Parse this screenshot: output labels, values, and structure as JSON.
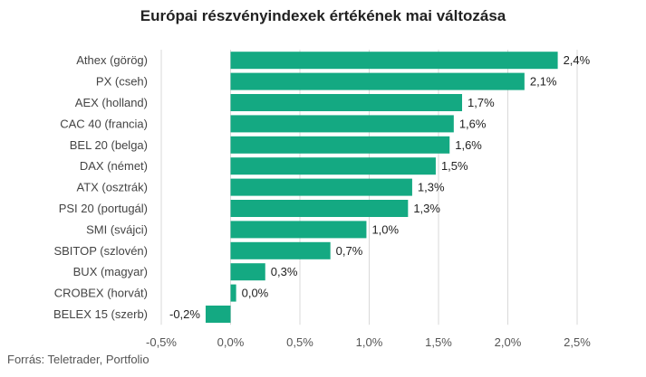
{
  "chart_data": {
    "type": "bar",
    "orientation": "horizontal",
    "title": "Európai részvényindexek értékének mai változása",
    "source": "Forrás: Teletrader, Portfolio",
    "bar_color": "#14a982",
    "categories": [
      "Athex (görög)",
      "PX (cseh)",
      "AEX (holland)",
      "CAC 40 (francia)",
      "BEL 20 (belga)",
      "DAX (német)",
      "ATX (osztrák)",
      "PSI 20 (portugál)",
      "SMI (svájci)",
      "SBITOP (szlovén)",
      "BUX (magyar)",
      "CROBEX (horvát)",
      "BELEX 15 (szerb)"
    ],
    "values": [
      2.36,
      2.12,
      1.67,
      1.61,
      1.58,
      1.48,
      1.31,
      1.28,
      0.98,
      0.72,
      0.25,
      0.04,
      -0.18
    ],
    "value_labels": [
      "2,4%",
      "2,1%",
      "1,7%",
      "1,6%",
      "1,6%",
      "1,5%",
      "1,3%",
      "1,3%",
      "1,0%",
      "0,7%",
      "0,3%",
      "0,0%",
      "-0,2%"
    ],
    "xlim": [
      -0.5,
      2.5
    ],
    "xticks": [
      -0.5,
      0,
      0.5,
      1,
      1.5,
      2,
      2.5
    ],
    "xtick_labels": [
      "-0,5%",
      "0,0%",
      "0,5%",
      "1,0%",
      "1,5%",
      "2,0%",
      "2,5%"
    ],
    "grid": true,
    "legend": false
  }
}
